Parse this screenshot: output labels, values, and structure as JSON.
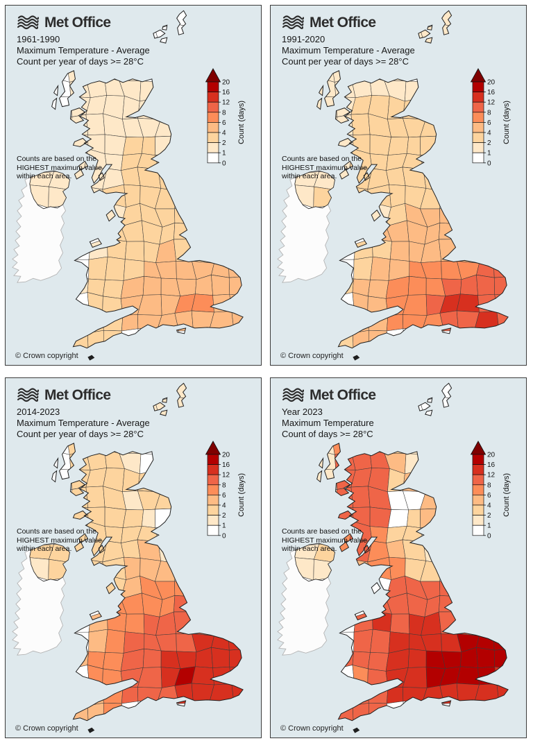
{
  "colors": {
    "sea": "#dfe9ed",
    "ireland_fill": "#fcfcfc",
    "ireland_stroke": "#b4b4b4",
    "region_stroke": "#3a3a3a",
    "coast_stroke": "#1f1f1f"
  },
  "scale": {
    "stops": [
      0,
      1,
      2,
      4,
      6,
      8,
      12,
      16,
      20
    ],
    "colors": [
      "#ffffff",
      "#fee8c8",
      "#fdd49e",
      "#fdbb84",
      "#fc8d59",
      "#ef6548",
      "#d7301f",
      "#b30000"
    ],
    "arrow_color": "#7f0000",
    "label": "Count (days)"
  },
  "panels": [
    {
      "logo_text": "Met Office",
      "title_lines": [
        "1961-1990",
        "Maximum Temperature - Average",
        "Count per year of days >= 28°C"
      ],
      "note_lines": [
        "Counts are based on the",
        "HIGHEST maximum value",
        "within each area."
      ],
      "copyright": "© Crown copyright",
      "values": [
        [
          0,
          0,
          0,
          0,
          0,
          0,
          0,
          0,
          0,
          0,
          0,
          0
        ],
        [
          0,
          0,
          0,
          0,
          0,
          0,
          0,
          0,
          0,
          0,
          0,
          0
        ],
        [
          0,
          0,
          0,
          0,
          0,
          0,
          0,
          0,
          0,
          0,
          0,
          0
        ],
        [
          0,
          0,
          1,
          1,
          1,
          1,
          0,
          0,
          0,
          0,
          0,
          0
        ],
        [
          0,
          0,
          1,
          1,
          1,
          1,
          1,
          0,
          0,
          0,
          0,
          0
        ],
        [
          0,
          0,
          1,
          1,
          1,
          1,
          1,
          0,
          0,
          0,
          0,
          0
        ],
        [
          0,
          1,
          1,
          1,
          1,
          1,
          1,
          1,
          0,
          0,
          0,
          0
        ],
        [
          0,
          0,
          1,
          1,
          1,
          2,
          2,
          1,
          0,
          0,
          0,
          0
        ],
        [
          0,
          0,
          1,
          1,
          1,
          2,
          2,
          2,
          0,
          0,
          0,
          0
        ],
        [
          1,
          1,
          1,
          1,
          1,
          2,
          2,
          2,
          0,
          0,
          0,
          0
        ],
        [
          1,
          1,
          0,
          1,
          2,
          2,
          2,
          2,
          0,
          0,
          0,
          0
        ],
        [
          0,
          0,
          0,
          0,
          1,
          2,
          2,
          2,
          2,
          0,
          0,
          0
        ],
        [
          0,
          0,
          0,
          0,
          2,
          2,
          2,
          2,
          2,
          2,
          0,
          0
        ],
        [
          0,
          0,
          0,
          1,
          2,
          2,
          2,
          4,
          2,
          2,
          0,
          0
        ],
        [
          0,
          0,
          0,
          2,
          2,
          2,
          4,
          4,
          4,
          4,
          4,
          4
        ],
        [
          0,
          0,
          1,
          2,
          2,
          4,
          4,
          4,
          4,
          4,
          4,
          4
        ],
        [
          0,
          0,
          0,
          2,
          2,
          4,
          4,
          4,
          6,
          6,
          4,
          4
        ],
        [
          0,
          0,
          0,
          2,
          2,
          4,
          4,
          4,
          4,
          4,
          4,
          4
        ],
        [
          0,
          0,
          2,
          2,
          2,
          0,
          0,
          0,
          0,
          0,
          0,
          0
        ]
      ]
    },
    {
      "logo_text": "Met Office",
      "title_lines": [
        "1991-2020",
        "Maximum Temperature - Average",
        "Count per year of days >= 28°C"
      ],
      "note_lines": [
        "Counts are based on the",
        "HIGHEST maximum value",
        "within each area."
      ],
      "copyright": "© Crown copyright",
      "values": [
        [
          0,
          0,
          0,
          0,
          0,
          0,
          0,
          0,
          1,
          0,
          0,
          0
        ],
        [
          0,
          0,
          0,
          0,
          0,
          0,
          1,
          1,
          1,
          0,
          0,
          0
        ],
        [
          0,
          0,
          0,
          0,
          0,
          0,
          0,
          0,
          0,
          0,
          0,
          0
        ],
        [
          0,
          1,
          1,
          1,
          1,
          1,
          0,
          0,
          0,
          0,
          0,
          0
        ],
        [
          0,
          1,
          1,
          1,
          1,
          1,
          1,
          0,
          0,
          0,
          0,
          0
        ],
        [
          0,
          1,
          1,
          2,
          2,
          2,
          2,
          0,
          0,
          0,
          0,
          0
        ],
        [
          0,
          1,
          1,
          2,
          2,
          2,
          2,
          2,
          0,
          0,
          0,
          0
        ],
        [
          0,
          0,
          1,
          2,
          2,
          2,
          2,
          2,
          0,
          0,
          0,
          0
        ],
        [
          0,
          0,
          1,
          2,
          2,
          2,
          2,
          2,
          0,
          0,
          0,
          0
        ],
        [
          1,
          1,
          1,
          2,
          2,
          2,
          2,
          2,
          0,
          0,
          0,
          0
        ],
        [
          1,
          2,
          0,
          2,
          2,
          2,
          2,
          2,
          0,
          0,
          0,
          0
        ],
        [
          0,
          0,
          0,
          0,
          1,
          2,
          4,
          4,
          4,
          0,
          0,
          0
        ],
        [
          0,
          0,
          0,
          0,
          4,
          4,
          4,
          4,
          4,
          4,
          0,
          0
        ],
        [
          0,
          0,
          0,
          2,
          2,
          4,
          4,
          4,
          4,
          4,
          0,
          0
        ],
        [
          0,
          0,
          0,
          2,
          4,
          4,
          6,
          6,
          6,
          6,
          8,
          8
        ],
        [
          0,
          0,
          2,
          4,
          4,
          6,
          6,
          6,
          8,
          8,
          8,
          8
        ],
        [
          0,
          0,
          0,
          4,
          4,
          6,
          6,
          8,
          12,
          12,
          8,
          8
        ],
        [
          0,
          0,
          0,
          4,
          4,
          6,
          6,
          6,
          8,
          8,
          12,
          8
        ],
        [
          0,
          0,
          2,
          4,
          4,
          0,
          0,
          0,
          0,
          0,
          0,
          0
        ]
      ]
    },
    {
      "logo_text": "Met Office",
      "title_lines": [
        "2014-2023",
        "Maximum Temperature - Average",
        "Count per year of days >= 28°C"
      ],
      "note_lines": [
        "Counts are based on the",
        "HIGHEST maximum value",
        "within each area."
      ],
      "copyright": "© Crown copyright",
      "values": [
        [
          0,
          0,
          0,
          0,
          0,
          0,
          0,
          0,
          1,
          0,
          0,
          0
        ],
        [
          0,
          0,
          0,
          0,
          0,
          0,
          1,
          1,
          1,
          0,
          0,
          0
        ],
        [
          0,
          0,
          0,
          0,
          0,
          0,
          0,
          0,
          0,
          0,
          0,
          0
        ],
        [
          0,
          0,
          2,
          2,
          1,
          1,
          0,
          0,
          0,
          0,
          0,
          0
        ],
        [
          0,
          0,
          2,
          2,
          2,
          1,
          0,
          0,
          0,
          0,
          0,
          0
        ],
        [
          0,
          0,
          2,
          2,
          2,
          2,
          2,
          0,
          0,
          0,
          0,
          0
        ],
        [
          0,
          0,
          2,
          2,
          2,
          1,
          2,
          2,
          0,
          0,
          0,
          0
        ],
        [
          0,
          0,
          2,
          2,
          2,
          2,
          1,
          0,
          0,
          0,
          0,
          0
        ],
        [
          0,
          0,
          2,
          2,
          2,
          2,
          2,
          0,
          0,
          0,
          0,
          0
        ],
        [
          2,
          2,
          2,
          2,
          2,
          2,
          4,
          1,
          0,
          0,
          0,
          0
        ],
        [
          1,
          2,
          0,
          2,
          2,
          4,
          4,
          4,
          0,
          0,
          0,
          0
        ],
        [
          0,
          0,
          0,
          0,
          2,
          4,
          6,
          6,
          6,
          0,
          0,
          0
        ],
        [
          0,
          0,
          0,
          0,
          6,
          6,
          6,
          6,
          8,
          6,
          0,
          0
        ],
        [
          0,
          0,
          0,
          4,
          6,
          6,
          8,
          8,
          8,
          8,
          0,
          0
        ],
        [
          0,
          0,
          0,
          4,
          6,
          8,
          8,
          8,
          8,
          12,
          12,
          12
        ],
        [
          0,
          0,
          4,
          6,
          6,
          8,
          8,
          12,
          12,
          12,
          12,
          12
        ],
        [
          0,
          0,
          0,
          6,
          6,
          8,
          8,
          12,
          16,
          12,
          12,
          12
        ],
        [
          0,
          0,
          0,
          4,
          6,
          8,
          8,
          8,
          12,
          12,
          12,
          12
        ],
        [
          0,
          0,
          4,
          4,
          6,
          0,
          0,
          0,
          0,
          0,
          0,
          0
        ]
      ]
    },
    {
      "logo_text": "Met Office",
      "title_lines": [
        "Year 2023",
        "Maximum Temperature",
        "Count of days >= 28°C"
      ],
      "note_lines": [
        "Counts are based on the",
        "HIGHEST maximum value",
        "within each area."
      ],
      "copyright": "© Crown copyright",
      "values": [
        [
          0,
          0,
          0,
          0,
          0,
          0,
          0,
          0,
          0,
          0,
          0,
          0
        ],
        [
          0,
          0,
          0,
          0,
          0,
          0,
          0,
          0,
          0,
          0,
          0,
          0
        ],
        [
          0,
          0,
          0,
          0,
          0,
          0,
          0,
          0,
          0,
          0,
          0,
          0
        ],
        [
          0,
          1,
          6,
          6,
          6,
          2,
          1,
          0,
          0,
          0,
          0,
          0
        ],
        [
          0,
          1,
          8,
          8,
          8,
          4,
          1,
          0,
          0,
          0,
          0,
          0
        ],
        [
          0,
          1,
          8,
          8,
          8,
          2,
          4,
          0,
          0,
          0,
          0,
          0
        ],
        [
          0,
          1,
          8,
          8,
          8,
          0,
          0,
          4,
          0,
          0,
          0,
          0
        ],
        [
          0,
          0,
          8,
          8,
          8,
          0,
          2,
          4,
          0,
          0,
          0,
          0
        ],
        [
          0,
          0,
          6,
          8,
          6,
          2,
          2,
          0,
          0,
          0,
          0,
          0
        ],
        [
          1,
          2,
          6,
          8,
          6,
          4,
          2,
          1,
          0,
          0,
          0,
          0
        ],
        [
          1,
          1,
          0,
          4,
          6,
          6,
          2,
          2,
          0,
          0,
          0,
          0
        ],
        [
          0,
          0,
          0,
          0,
          0,
          8,
          8,
          8,
          8,
          0,
          0,
          0
        ],
        [
          0,
          0,
          0,
          0,
          8,
          8,
          8,
          8,
          8,
          8,
          0,
          0
        ],
        [
          0,
          0,
          0,
          8,
          12,
          8,
          12,
          12,
          8,
          8,
          0,
          0
        ],
        [
          0,
          0,
          0,
          8,
          8,
          12,
          12,
          12,
          12,
          16,
          16,
          16
        ],
        [
          0,
          0,
          8,
          8,
          8,
          12,
          12,
          16,
          16,
          16,
          16,
          16
        ],
        [
          0,
          0,
          0,
          6,
          8,
          12,
          12,
          16,
          16,
          16,
          16,
          12
        ],
        [
          0,
          0,
          0,
          8,
          8,
          12,
          12,
          12,
          12,
          12,
          12,
          12
        ],
        [
          0,
          0,
          8,
          8,
          8,
          0,
          0,
          0,
          0,
          0,
          0,
          0
        ]
      ]
    }
  ]
}
